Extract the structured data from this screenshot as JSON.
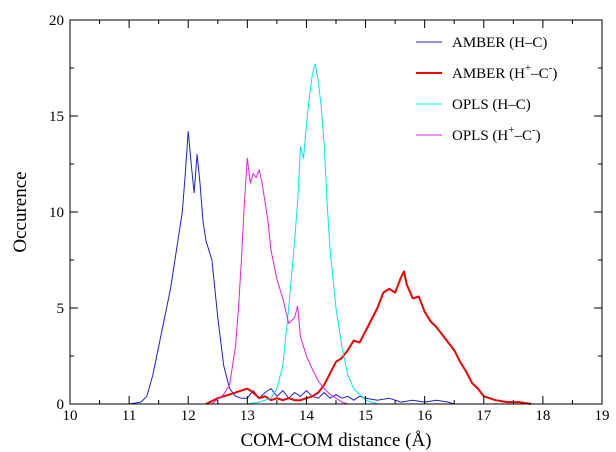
{
  "chart_data": {
    "type": "line",
    "title": "",
    "xlabel": "COM-COM distance (Å)",
    "ylabel": "Occurence",
    "xlim": [
      10,
      19
    ],
    "ylim": [
      0,
      20
    ],
    "xticks": [
      10,
      11,
      12,
      13,
      14,
      15,
      16,
      17,
      18,
      19
    ],
    "yticks": [
      0,
      5,
      10,
      15,
      20
    ],
    "grid": false,
    "legend_position": "top-right",
    "series": [
      {
        "name": "AMBER (H–C)",
        "legend_base": "AMBER (H–C)",
        "legend_sup": [],
        "color": "#1f1fd6",
        "line_width": 1,
        "x": [
          11.0,
          11.2,
          11.3,
          11.4,
          11.5,
          11.6,
          11.7,
          11.8,
          11.9,
          11.95,
          12.0,
          12.05,
          12.1,
          12.15,
          12.2,
          12.25,
          12.3,
          12.4,
          12.5,
          12.6,
          12.7,
          12.8,
          12.9,
          13.0,
          13.1,
          13.2,
          13.3,
          13.4,
          13.5,
          13.6,
          13.7,
          13.8,
          13.9,
          14.0,
          14.1,
          14.2,
          14.3,
          14.4,
          14.5,
          14.6,
          14.7,
          14.8,
          14.9,
          15.0,
          15.2,
          15.4,
          15.6,
          15.8,
          16.0,
          16.2,
          16.4,
          16.5
        ],
        "y": [
          0.0,
          0.1,
          0.4,
          1.5,
          3.0,
          4.5,
          6.0,
          8.0,
          10.0,
          12.0,
          14.2,
          12.5,
          11.0,
          13.0,
          11.5,
          9.5,
          8.5,
          7.5,
          4.5,
          2.0,
          0.8,
          0.4,
          0.3,
          0.3,
          0.7,
          0.3,
          0.6,
          0.8,
          0.4,
          0.7,
          0.3,
          0.6,
          0.4,
          0.7,
          0.4,
          0.3,
          0.6,
          0.3,
          0.5,
          0.3,
          0.4,
          0.2,
          0.4,
          0.3,
          0.2,
          0.3,
          0.1,
          0.2,
          0.1,
          0.2,
          0.1,
          0.0
        ]
      },
      {
        "name": "AMBER (H+–C-)",
        "legend_base": "AMBER (H",
        "legend_sup": [
          "+",
          "–C",
          "-",
          ")"
        ],
        "color": "#ee0000",
        "line_width": 2,
        "x": [
          12.3,
          12.5,
          12.7,
          12.9,
          13.0,
          13.1,
          13.2,
          13.3,
          13.4,
          13.5,
          13.6,
          13.7,
          13.8,
          13.9,
          14.0,
          14.1,
          14.2,
          14.3,
          14.4,
          14.5,
          14.6,
          14.7,
          14.8,
          14.9,
          15.0,
          15.1,
          15.2,
          15.3,
          15.4,
          15.5,
          15.6,
          15.65,
          15.7,
          15.8,
          15.9,
          16.0,
          16.1,
          16.2,
          16.3,
          16.4,
          16.5,
          16.6,
          16.7,
          16.8,
          16.9,
          17.0,
          17.2,
          17.4,
          17.6,
          17.8
        ],
        "y": [
          0.0,
          0.3,
          0.5,
          0.7,
          0.8,
          0.6,
          0.3,
          0.4,
          0.2,
          0.3,
          0.2,
          0.3,
          0.2,
          0.2,
          0.3,
          0.4,
          0.6,
          1.0,
          1.6,
          2.2,
          2.4,
          2.8,
          3.3,
          3.2,
          3.8,
          4.4,
          5.0,
          5.8,
          6.0,
          5.8,
          6.6,
          6.9,
          6.2,
          5.5,
          5.6,
          4.8,
          4.3,
          4.0,
          3.6,
          3.2,
          2.8,
          2.2,
          1.7,
          1.1,
          0.8,
          0.4,
          0.2,
          0.1,
          0.1,
          0.0
        ]
      },
      {
        "name": "OPLS (H–C)",
        "legend_base": "OPLS (H–C)",
        "legend_sup": [],
        "color": "#00e8e8",
        "line_width": 1,
        "x": [
          13.0,
          13.2,
          13.4,
          13.5,
          13.6,
          13.7,
          13.8,
          13.85,
          13.9,
          13.95,
          14.0,
          14.05,
          14.1,
          14.15,
          14.2,
          14.25,
          14.3,
          14.35,
          14.4,
          14.5,
          14.6,
          14.7,
          14.8,
          14.9,
          15.0,
          15.1,
          15.2
        ],
        "y": [
          0.0,
          0.1,
          0.3,
          0.8,
          2.0,
          5.0,
          8.5,
          10.5,
          13.4,
          12.8,
          14.5,
          16.0,
          17.2,
          17.7,
          16.8,
          15.5,
          13.5,
          10.5,
          8.0,
          5.0,
          3.0,
          1.5,
          0.8,
          0.5,
          0.2,
          0.1,
          0.0
        ]
      },
      {
        "name": "OPLS (H+–C-)",
        "legend_base": "OPLS (H",
        "legend_sup": [
          "+",
          "–C",
          "-",
          ")"
        ],
        "color": "#dd22dd",
        "line_width": 1,
        "x": [
          12.4,
          12.6,
          12.7,
          12.8,
          12.85,
          12.9,
          12.95,
          13.0,
          13.05,
          13.1,
          13.15,
          13.2,
          13.25,
          13.3,
          13.35,
          13.4,
          13.5,
          13.6,
          13.7,
          13.8,
          13.85,
          13.9,
          14.0,
          14.1,
          14.2,
          14.3,
          14.4,
          14.5,
          14.6,
          14.7
        ],
        "y": [
          0.0,
          0.5,
          1.0,
          3.0,
          5.0,
          7.5,
          10.5,
          12.8,
          11.5,
          12.0,
          11.8,
          12.2,
          11.5,
          10.5,
          9.5,
          8.0,
          6.5,
          5.5,
          4.2,
          4.5,
          5.1,
          3.5,
          2.5,
          1.8,
          1.2,
          0.8,
          0.5,
          0.3,
          0.1,
          0.0
        ]
      }
    ]
  }
}
